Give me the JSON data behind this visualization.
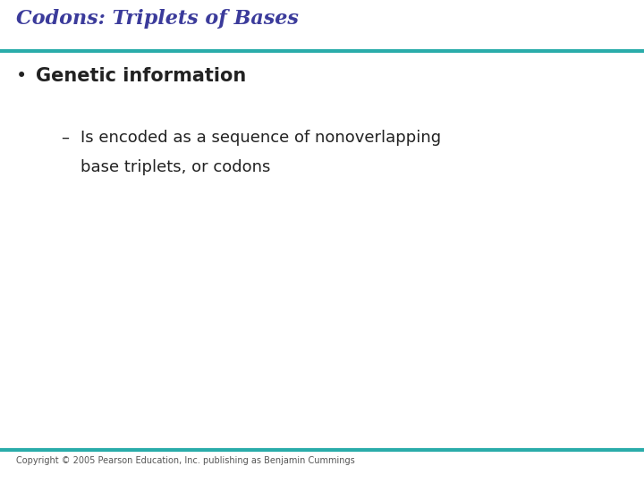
{
  "title": "Codons: Triplets of Bases",
  "title_color": "#3B3B9B",
  "title_fontsize": 16,
  "title_style": "italic",
  "title_weight": "bold",
  "title_font": "serif",
  "line_color": "#2AACAA",
  "line_thickness": 3.0,
  "bullet_text": "Genetic information",
  "bullet_fontsize": 15,
  "bullet_color": "#222222",
  "bullet_weight": "bold",
  "bullet_marker": "•",
  "sub_bullet_dash": "–",
  "sub_line1": "Is encoded as a sequence of nonoverlapping",
  "sub_line2": "base triplets, or codons",
  "sub_fontsize": 13,
  "sub_color": "#222222",
  "background_color": "#FFFFFF",
  "copyright_text": "Copyright © 2005 Pearson Education, Inc. publishing as Benjamin Cummings",
  "copyright_fontsize": 7,
  "copyright_color": "#555555"
}
